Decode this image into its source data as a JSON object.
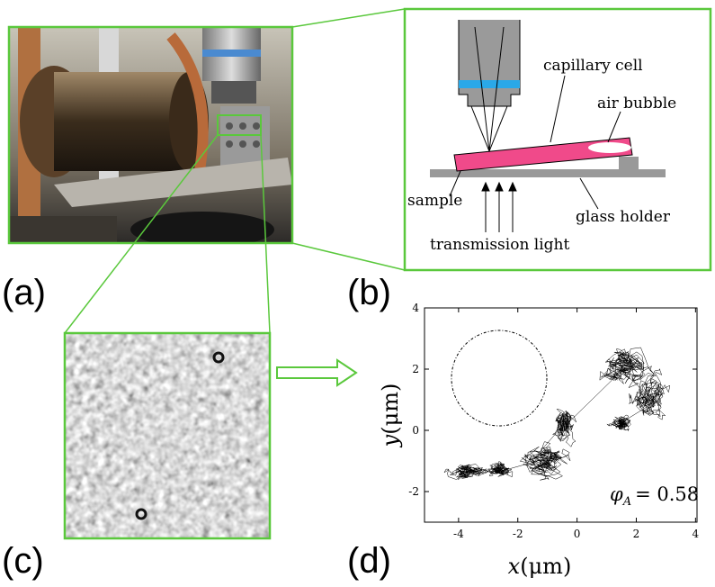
{
  "figure": {
    "panel_labels": [
      "(a)",
      "(b)",
      "(c)",
      "(d)"
    ],
    "schematic": {
      "capillary_cell": "capillary cell",
      "air_bubble": "air bubble",
      "sample": "sample",
      "glass_holder": "glass holder",
      "transmission_light": "transmission light"
    },
    "plot": {
      "xlabel": {
        "symbol": "x",
        "unit": "(μm)"
      },
      "ylabel": {
        "symbol": "y",
        "unit": "(μm)"
      },
      "annotation": {
        "symbol": "φ",
        "subscript": "A",
        "text": "= 0.58"
      },
      "xlim": [
        -5.15,
        4.05
      ],
      "ylim": [
        -3,
        4
      ],
      "xticks": [
        -4,
        -2,
        0,
        2,
        4
      ],
      "yticks": [
        -2,
        0,
        2,
        4
      ]
    }
  }
}
